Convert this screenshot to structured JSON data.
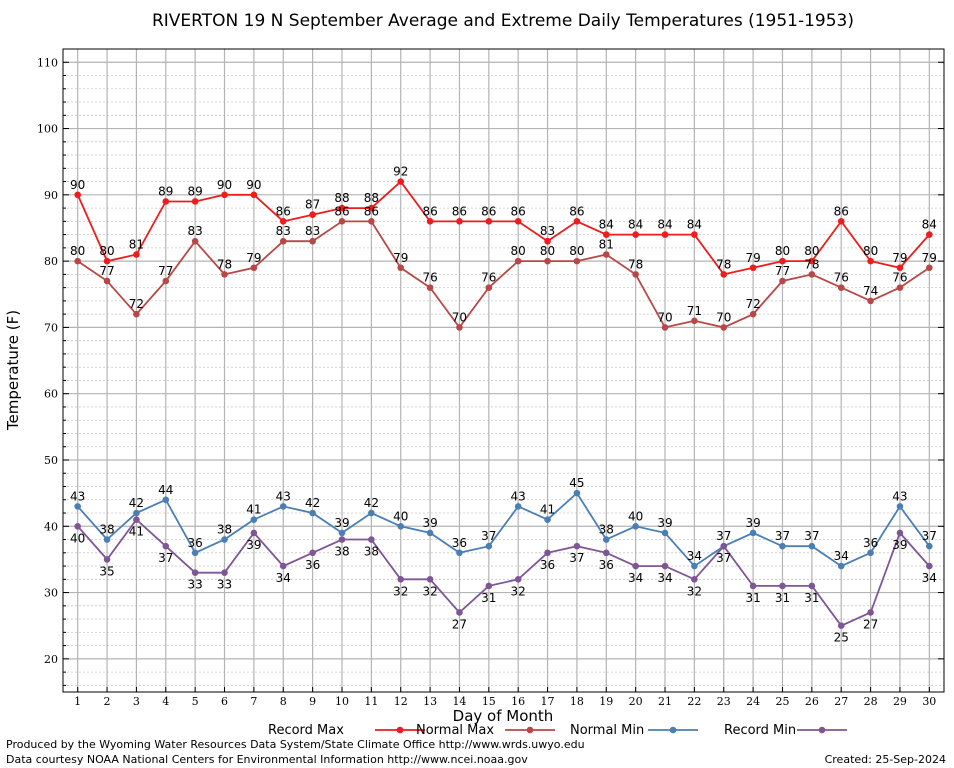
{
  "chart_data": {
    "type": "line",
    "title": "RIVERTON 19 N September Average and Extreme Daily Temperatures (1951-1953)",
    "xlabel": "Day of Month",
    "ylabel": "Temperature (F)",
    "xlim": [
      0.5,
      30.5
    ],
    "ylim": [
      15,
      112
    ],
    "yticks": [
      20,
      30,
      40,
      50,
      60,
      70,
      80,
      90,
      100,
      110
    ],
    "grid": true,
    "legend_position": "bottom",
    "x": [
      1,
      2,
      3,
      4,
      5,
      6,
      7,
      8,
      9,
      10,
      11,
      12,
      13,
      14,
      15,
      16,
      17,
      18,
      19,
      20,
      21,
      22,
      23,
      24,
      25,
      26,
      27,
      28,
      29,
      30
    ],
    "series": [
      {
        "name": "Record Max",
        "color": "#ee1c1c",
        "label_pos": "above",
        "values": [
          90,
          80,
          81,
          89,
          89,
          90,
          90,
          86,
          87,
          88,
          88,
          92,
          86,
          86,
          86,
          86,
          83,
          86,
          84,
          84,
          84,
          84,
          78,
          79,
          80,
          80,
          86,
          80,
          79,
          84
        ]
      },
      {
        "name": "Normal Max",
        "color": "#b84848",
        "label_pos": "above",
        "values": [
          80,
          77,
          72,
          77,
          83,
          78,
          79,
          83,
          83,
          86,
          86,
          79,
          76,
          70,
          76,
          80,
          80,
          80,
          81,
          78,
          70,
          71,
          70,
          72,
          77,
          78,
          76,
          74,
          76,
          79
        ]
      },
      {
        "name": "Normal Min",
        "color": "#4a7fb5",
        "label_pos": "above",
        "values": [
          43,
          38,
          42,
          44,
          36,
          38,
          41,
          43,
          42,
          39,
          42,
          40,
          39,
          36,
          37,
          43,
          41,
          45,
          38,
          40,
          39,
          34,
          37,
          39,
          37,
          37,
          34,
          36,
          43,
          37
        ]
      },
      {
        "name": "Record Min",
        "color": "#7f5596",
        "label_pos": "below",
        "values": [
          40,
          35,
          41,
          37,
          33,
          33,
          39,
          34,
          36,
          38,
          38,
          32,
          32,
          27,
          31,
          32,
          36,
          37,
          36,
          34,
          34,
          32,
          37,
          31,
          31,
          31,
          25,
          27,
          39,
          34
        ]
      }
    ]
  },
  "footer": {
    "produced_by": "Produced by the Wyoming Water Resources Data System/State Climate Office http://www.wrds.uwyo.edu",
    "courtesy": "Data courtesy NOAA National Centers for Environmental Information http://www.ncei.noaa.gov",
    "created": "Created: 25-Sep-2024"
  }
}
